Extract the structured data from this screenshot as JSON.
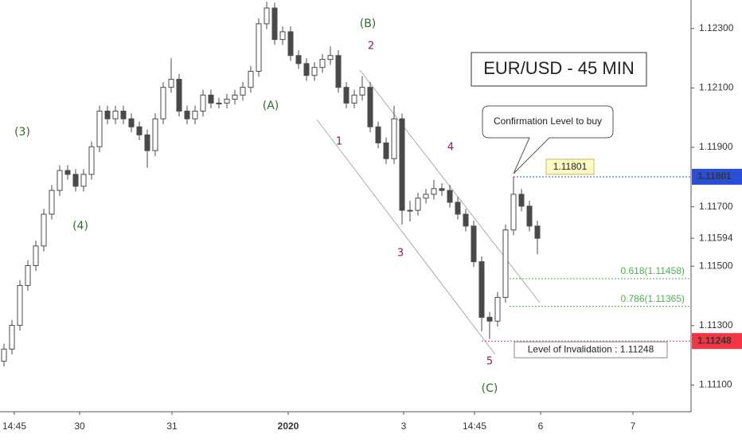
{
  "chart_data": {
    "type": "candlestick",
    "title": "EUR/USD - 45 MIN",
    "callout": "Confirmation Level to buy",
    "open": [
      1.1118,
      1.11221,
      1.11301,
      1.11435,
      1.11502,
      1.11568,
      1.11675,
      1.11755,
      1.11822,
      1.11809,
      1.11769,
      1.11809,
      1.11902,
      1.12022,
      1.11996,
      1.12022,
      1.11996,
      1.11969,
      1.11942,
      1.11889,
      1.11996,
      1.12102,
      1.12129,
      1.12022,
      1.11996,
      1.12022,
      1.12076,
      1.12049,
      1.12049,
      1.12062,
      1.12076,
      1.12102,
      1.12156,
      1.12316,
      1.12369,
      1.12263,
      1.12289,
      1.12209,
      1.12182,
      1.12142,
      1.12169,
      1.12196,
      1.12209,
      1.12102,
      1.12049,
      1.12076,
      1.12102,
      1.11969,
      1.11915,
      1.11862,
      1.11996,
      1.11688,
      1.11688,
      1.11729,
      1.11742,
      1.11761,
      1.11755,
      1.11715,
      1.11675,
      1.11635,
      1.11515,
      1.11328,
      1.11315,
      1.11395,
      1.11622,
      1.11742,
      1.11702,
      1.11635
    ],
    "high": [
      1.11239,
      1.11319,
      1.11453,
      1.1152,
      1.11586,
      1.11693,
      1.11773,
      1.1184,
      1.1184,
      1.11827,
      1.11827,
      1.1192,
      1.1204,
      1.1204,
      1.1204,
      1.1204,
      1.12014,
      1.11987,
      1.1196,
      1.12014,
      1.1212,
      1.122,
      1.12147,
      1.1204,
      1.1204,
      1.12094,
      1.12094,
      1.12067,
      1.1208,
      1.12094,
      1.1212,
      1.12174,
      1.12334,
      1.1239,
      1.12387,
      1.12307,
      1.12307,
      1.12227,
      1.122,
      1.12187,
      1.12214,
      1.1224,
      1.12227,
      1.1212,
      1.12094,
      1.1214,
      1.1212,
      1.11987,
      1.11933,
      1.1204,
      1.12014,
      1.1172,
      1.11747,
      1.1176,
      1.1179,
      1.11779,
      1.11773,
      1.11733,
      1.11693,
      1.11653,
      1.11533,
      1.11346,
      1.11413,
      1.1164,
      1.11801,
      1.1176,
      1.1172,
      1.11653
    ],
    "low": [
      1.11162,
      1.11203,
      1.11283,
      1.11417,
      1.11484,
      1.1155,
      1.11657,
      1.11737,
      1.11791,
      1.11751,
      1.11751,
      1.11791,
      1.11884,
      1.11978,
      1.11978,
      1.11978,
      1.11951,
      1.11924,
      1.11831,
      1.11871,
      1.11978,
      1.12084,
      1.12004,
      1.11978,
      1.11978,
      1.12004,
      1.12031,
      1.12031,
      1.12031,
      1.12044,
      1.12058,
      1.12084,
      1.12138,
      1.12298,
      1.12245,
      1.12245,
      1.12191,
      1.12164,
      1.12124,
      1.12124,
      1.12151,
      1.12178,
      1.12084,
      1.12031,
      1.12031,
      1.12058,
      1.11951,
      1.11897,
      1.11844,
      1.11844,
      1.1164,
      1.1165,
      1.1167,
      1.11711,
      1.11724,
      1.11737,
      1.11697,
      1.11657,
      1.11617,
      1.11497,
      1.1128,
      1.11255,
      1.11297,
      1.11377,
      1.11604,
      1.11684,
      1.11617,
      1.1154
    ],
    "close": [
      1.11221,
      1.11301,
      1.11435,
      1.11502,
      1.11568,
      1.11675,
      1.11755,
      1.11822,
      1.11809,
      1.11769,
      1.11809,
      1.11902,
      1.12022,
      1.11996,
      1.12022,
      1.11996,
      1.11969,
      1.11942,
      1.11889,
      1.11996,
      1.12102,
      1.12129,
      1.12022,
      1.11996,
      1.12022,
      1.12076,
      1.12049,
      1.12049,
      1.12062,
      1.12076,
      1.12102,
      1.12156,
      1.12316,
      1.12369,
      1.12263,
      1.12289,
      1.12209,
      1.12182,
      1.12142,
      1.12169,
      1.12196,
      1.12209,
      1.12102,
      1.12049,
      1.12076,
      1.12102,
      1.11969,
      1.11915,
      1.11862,
      1.11996,
      1.11688,
      1.11688,
      1.11729,
      1.11742,
      1.11761,
      1.11755,
      1.11715,
      1.11675,
      1.11635,
      1.11515,
      1.11328,
      1.11315,
      1.11395,
      1.11622,
      1.11742,
      1.11702,
      1.11635,
      1.11594
    ],
    "up_color": "#ffffff",
    "down_color": "#4a4a4a",
    "wick_color": "#4a4a4a",
    "xlim": [
      -0.5,
      86.5
    ],
    "xticks": [
      {
        "value": 1.3,
        "label": "14:45"
      },
      {
        "value": 9.5,
        "label": "30"
      },
      {
        "value": 21.1,
        "label": "31"
      },
      {
        "value": 35.7,
        "label": "2020"
      },
      {
        "value": 50.2,
        "label": "3"
      },
      {
        "value": 59.1,
        "label": "14:45"
      },
      {
        "value": 67.4,
        "label": "6"
      },
      {
        "value": 79,
        "label": "7"
      }
    ],
    "ylim": [
      1.1101,
      1.12396
    ],
    "yticks": [
      {
        "value": 1.111,
        "label": "1.11100"
      },
      {
        "value": 1.113,
        "label": "1.11300"
      },
      {
        "value": 1.115,
        "label": "1.11500"
      },
      {
        "value": 1.117,
        "label": "1.11700"
      },
      {
        "value": 1.119,
        "label": "1.11900"
      },
      {
        "value": 1.121,
        "label": "1.12100"
      },
      {
        "value": 1.123,
        "label": "1.12300"
      }
    ],
    "grid": false,
    "current_price": {
      "value": 1.11594,
      "label": "1.11594"
    },
    "levels": [
      {
        "value": 1.11801,
        "label": "1.11801",
        "note": "1.11801",
        "color": "#2a4fd6"
      },
      {
        "value": 1.11458,
        "note": "0.618(1.11458)",
        "color": "#4caf50"
      },
      {
        "value": 1.11365,
        "note": "0.786(1.11365)",
        "color": "#4caf50"
      },
      {
        "value": 1.11248,
        "label": "1.11248",
        "note": "Level of Invalidation : 1.11248",
        "color": "#f23645"
      }
    ],
    "wave_labels": [
      "(3)",
      "(4)",
      "(A)",
      "(B)",
      "(C)",
      "1",
      "2",
      "3",
      "4",
      "5"
    ]
  }
}
